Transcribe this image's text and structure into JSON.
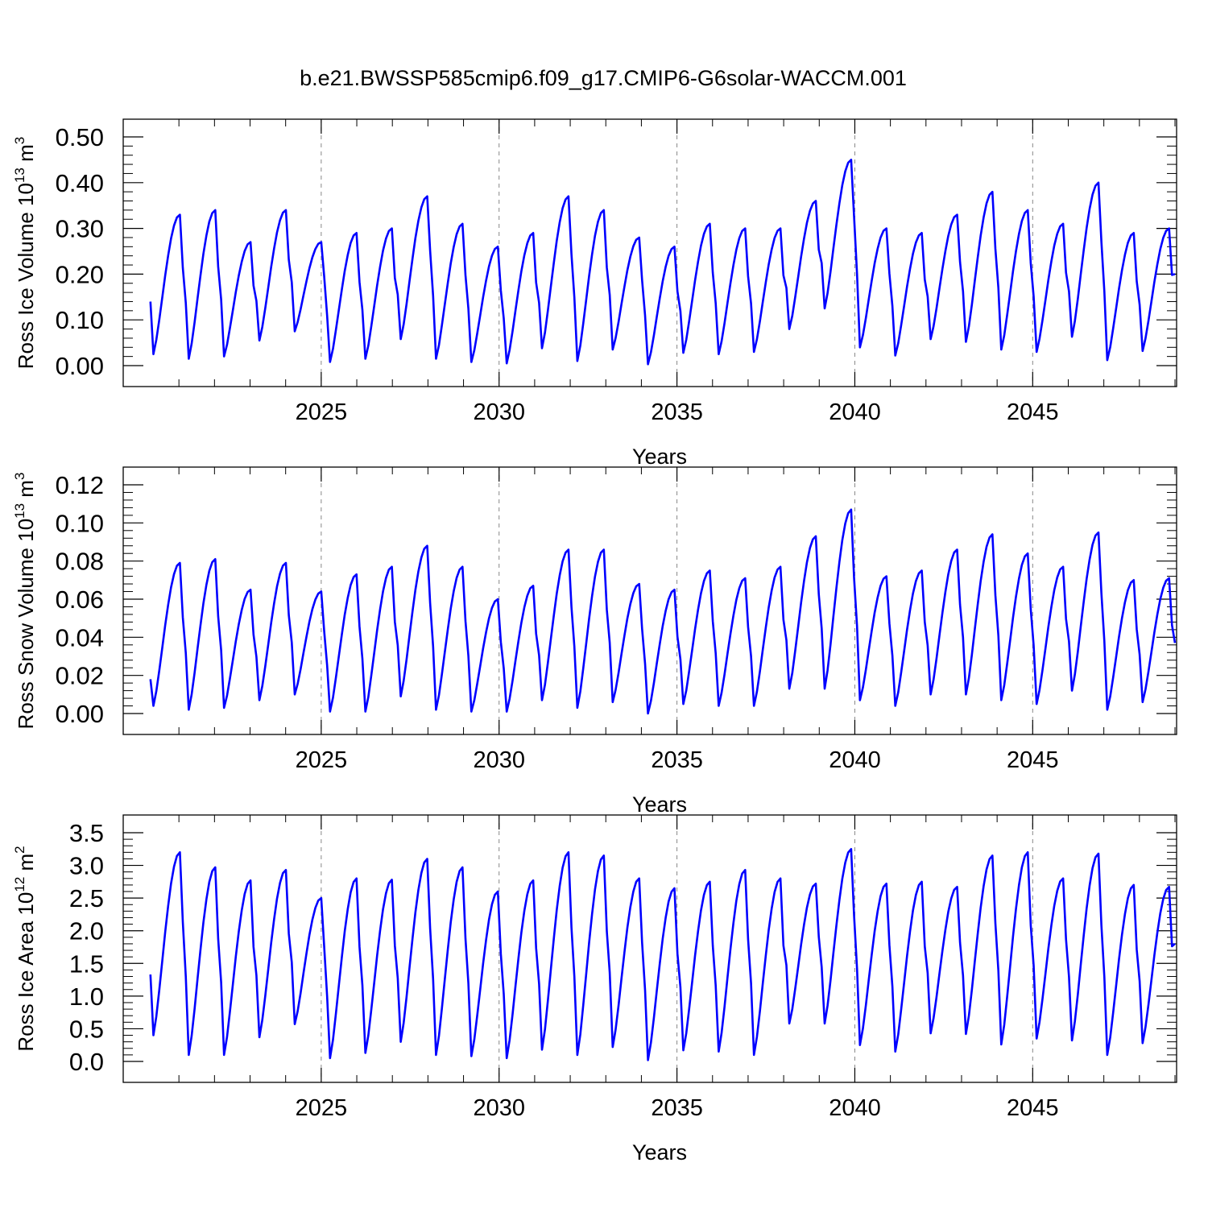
{
  "title": "b.e21.BWSSP585cmip6.f09_g17.CMIP6-G6solar-WACCM.001",
  "chart_data": [
    {
      "type": "line",
      "ylabel": "Ross Ice Volume 10",
      "ylabel_sup": "13",
      "ylabel_unit": " m",
      "ylabel_unit_sup": "3",
      "xlabel": "Years",
      "xlim": [
        2020,
        2049
      ],
      "ylim": [
        0,
        0.5
      ],
      "yticks": [
        "0.00",
        "0.10",
        "0.20",
        "0.30",
        "0.40",
        "0.50"
      ],
      "xticks": [
        "2025",
        "2030",
        "2035",
        "2040",
        "2045"
      ],
      "grid": "vertical-dashed",
      "color": "#0000ff",
      "peaks": [
        0.33,
        0.34,
        0.27,
        0.34,
        0.27,
        0.29,
        0.3,
        0.37,
        0.31,
        0.26,
        0.29,
        0.37,
        0.34,
        0.28,
        0.26,
        0.31,
        0.3,
        0.3,
        0.36,
        0.45,
        0.3,
        0.29,
        0.33,
        0.38,
        0.34,
        0.31,
        0.4,
        0.29,
        0.3
      ],
      "troughs": [
        0.025,
        0.015,
        0.02,
        0.055,
        0.075,
        0.008,
        0.015,
        0.058,
        0.015,
        0.008,
        0.005,
        0.038,
        0.01,
        0.035,
        0.003,
        0.028,
        0.025,
        0.03,
        0.08,
        0.125,
        0.04,
        0.022,
        0.058,
        0.052,
        0.035,
        0.03,
        0.063,
        0.012,
        0.032
      ],
      "start_value": 0.14,
      "end_value": 0.2
    },
    {
      "type": "line",
      "ylabel": "Ross Snow Volume 10",
      "ylabel_sup": "13",
      "ylabel_unit": " m",
      "ylabel_unit_sup": "3",
      "xlabel": "Years",
      "xlim": [
        2020,
        2049
      ],
      "ylim": [
        0,
        0.12
      ],
      "yticks": [
        "0.00",
        "0.02",
        "0.04",
        "0.06",
        "0.08",
        "0.10",
        "0.12"
      ],
      "xticks": [
        "2025",
        "2030",
        "2035",
        "2040",
        "2045"
      ],
      "grid": "vertical-dashed",
      "color": "#0000ff",
      "peaks": [
        0.079,
        0.081,
        0.065,
        0.079,
        0.064,
        0.073,
        0.077,
        0.088,
        0.077,
        0.06,
        0.067,
        0.086,
        0.086,
        0.068,
        0.065,
        0.075,
        0.071,
        0.077,
        0.093,
        0.107,
        0.072,
        0.075,
        0.086,
        0.094,
        0.084,
        0.077,
        0.095,
        0.07,
        0.071
      ],
      "troughs": [
        0.004,
        0.002,
        0.003,
        0.007,
        0.01,
        0.001,
        0.001,
        0.009,
        0.002,
        0.001,
        0.001,
        0.007,
        0.003,
        0.006,
        0.0,
        0.005,
        0.004,
        0.004,
        0.013,
        0.013,
        0.007,
        0.004,
        0.01,
        0.01,
        0.007,
        0.005,
        0.012,
        0.002,
        0.006
      ],
      "start_value": 0.018,
      "end_value": 0.037
    },
    {
      "type": "line",
      "ylabel": "Ross Ice Area 10",
      "ylabel_sup": "12",
      "ylabel_unit": " m",
      "ylabel_unit_sup": "2",
      "xlabel": "Years",
      "xlim": [
        2020,
        2049
      ],
      "ylim": [
        0,
        3.5
      ],
      "yticks": [
        "0.0",
        "0.5",
        "1.0",
        "1.5",
        "2.0",
        "2.5",
        "3.0",
        "3.5"
      ],
      "xticks": [
        "2025",
        "2030",
        "2035",
        "2040",
        "2045"
      ],
      "grid": "vertical-dashed",
      "color": "#0000ff",
      "peaks": [
        3.2,
        2.97,
        2.77,
        2.93,
        2.5,
        2.8,
        2.78,
        3.1,
        2.97,
        2.6,
        2.77,
        3.2,
        3.15,
        2.8,
        2.65,
        2.75,
        2.93,
        2.8,
        2.72,
        3.25,
        2.72,
        2.75,
        2.67,
        3.15,
        3.2,
        2.8,
        3.18,
        2.7,
        2.67
      ],
      "troughs": [
        0.4,
        0.1,
        0.1,
        0.37,
        0.57,
        0.05,
        0.13,
        0.3,
        0.1,
        0.08,
        0.05,
        0.18,
        0.1,
        0.22,
        0.02,
        0.17,
        0.15,
        0.1,
        0.58,
        0.58,
        0.25,
        0.15,
        0.43,
        0.42,
        0.26,
        0.35,
        0.32,
        0.1,
        0.28
      ],
      "start_value": 1.33,
      "end_value": 1.8
    }
  ]
}
